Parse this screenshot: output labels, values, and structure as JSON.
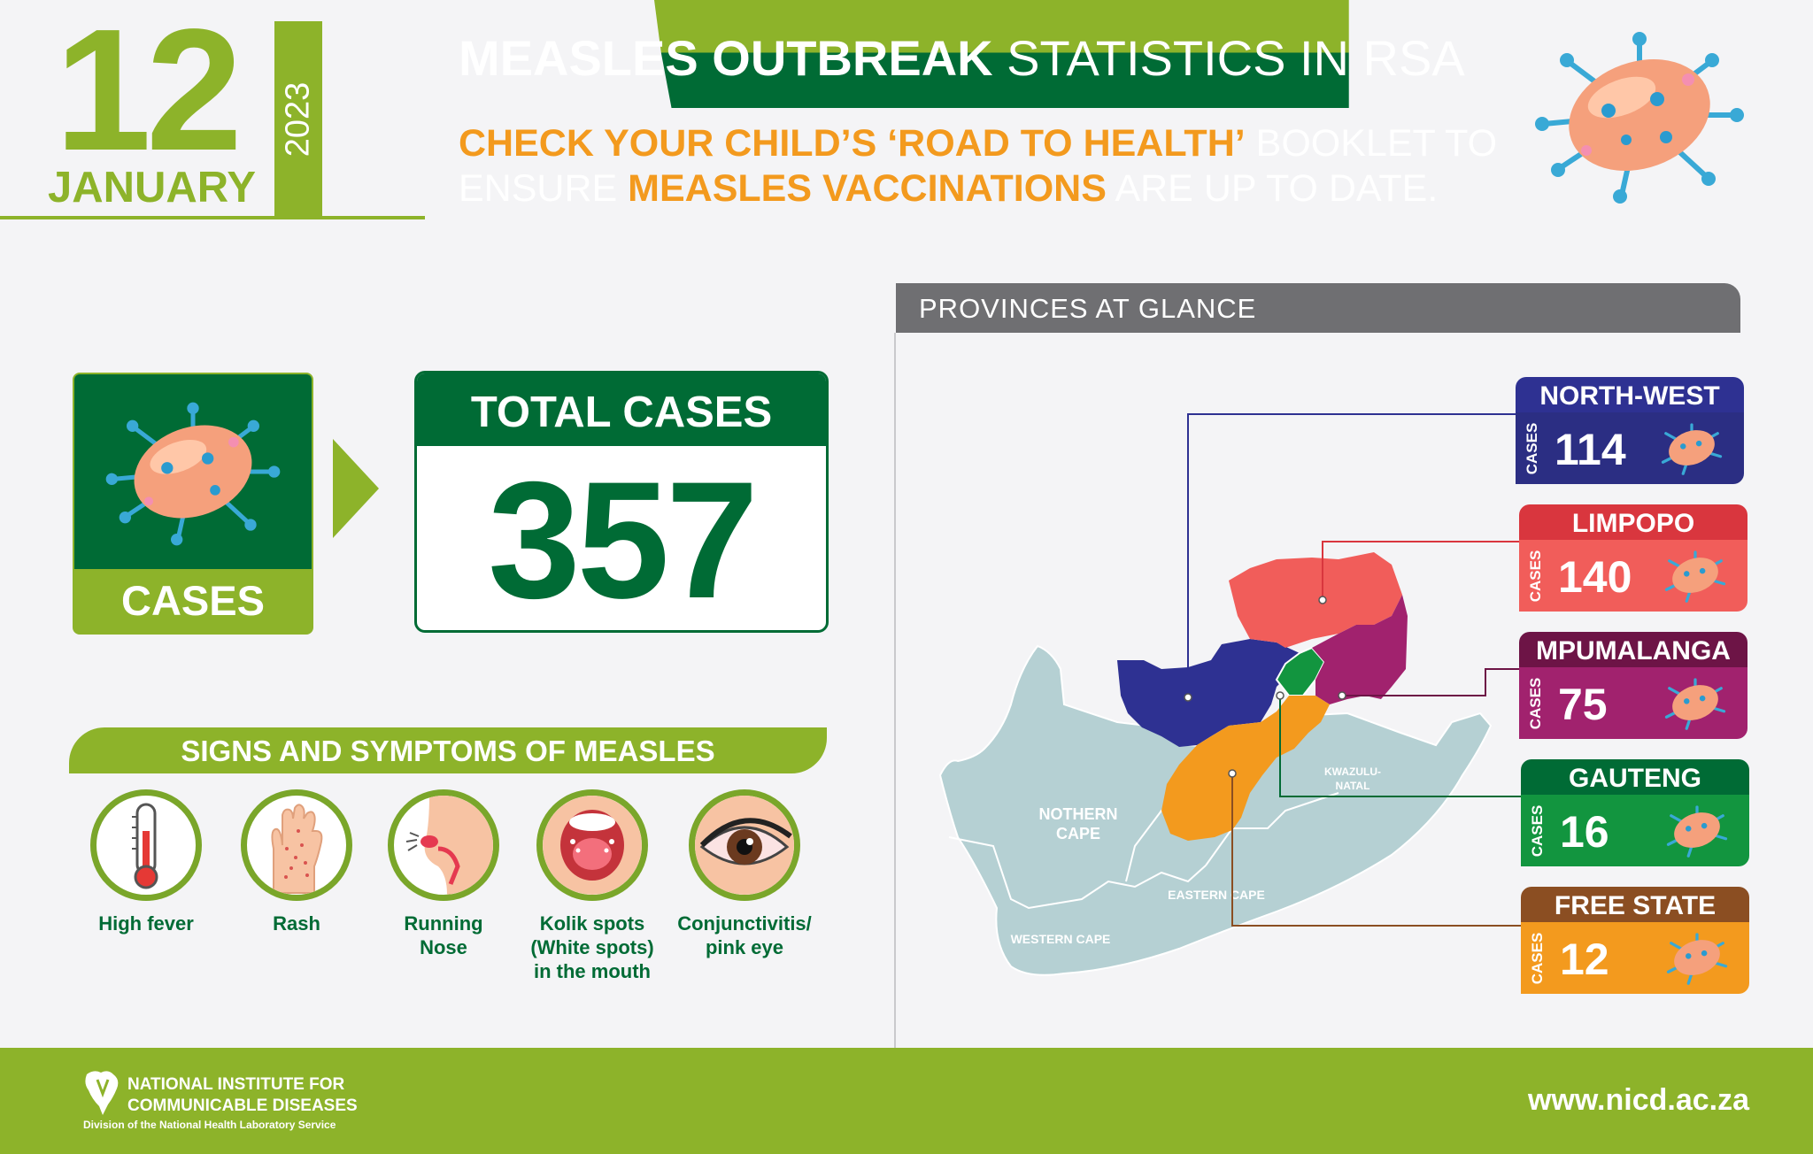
{
  "date": {
    "day": "12",
    "month": "JANUARY",
    "year": "2023"
  },
  "header": {
    "title_bold": "MEASLES OUTBREAK",
    "title_rest": "STATISTICS IN RSA",
    "line1_highlight": "CHECK YOUR CHILD’S ‘ROAD TO HEALTH’",
    "line1_rest": "BOOKLET TO",
    "line2_start": "ENSURE",
    "line2_highlight": "MEASLES VACCINATIONS",
    "line2_rest": "ARE UP TO DATE."
  },
  "cases": {
    "label": "CASES",
    "total_label": "TOTAL CASES",
    "total_value": "357"
  },
  "symptoms": {
    "title": "SIGNS AND SYMPTOMS OF MEASLES",
    "items": [
      {
        "line1": "High fever",
        "line2": "",
        "line3": ""
      },
      {
        "line1": "Rash",
        "line2": "",
        "line3": ""
      },
      {
        "line1": "Running",
        "line2": "Nose",
        "line3": ""
      },
      {
        "line1": "Kolik spots",
        "line2": "(White spots)",
        "line3": "in the mouth"
      },
      {
        "line1": "Conjunctivitis/",
        "line2": "pink eye",
        "line3": ""
      }
    ]
  },
  "provinces": {
    "title": "PROVINCES AT GLANCE",
    "cases_label": "CASES",
    "items": [
      {
        "name": "NORTH-WEST",
        "cases": "114",
        "color": "#2b2e83",
        "head": "#2e3192"
      },
      {
        "name": "LIMPOPO",
        "cases": "140",
        "color": "#f15d5a",
        "head": "#d9363e"
      },
      {
        "name": "MPUMALANGA",
        "cases": "75",
        "color": "#a1226e",
        "head": "#6d1446"
      },
      {
        "name": "GAUTENG",
        "cases": "16",
        "color": "#12953f",
        "head": "#006b35"
      },
      {
        "name": "FREE STATE",
        "cases": "12",
        "color": "#f39a1e",
        "head": "#8b4e22"
      }
    ],
    "map_labels": {
      "northern_cape_1": "NOTHERN",
      "northern_cape_2": "CAPE",
      "western_cape": "WESTERN CAPE",
      "eastern_cape": "EASTERN CAPE",
      "kzn_1": "KWAZULU-",
      "kzn_2": "NATAL"
    }
  },
  "footer": {
    "org_line1": "NATIONAL INSTITUTE FOR",
    "org_line2": "COMMUNICABLE DISEASES",
    "org_line3": "Division of the National Health Laboratory Service",
    "url": "www.nicd.ac.za"
  },
  "colors": {
    "light_green": "#8db32a",
    "dark_green": "#006b35",
    "orange": "#f39a1e",
    "grey": "#6f6f72"
  }
}
